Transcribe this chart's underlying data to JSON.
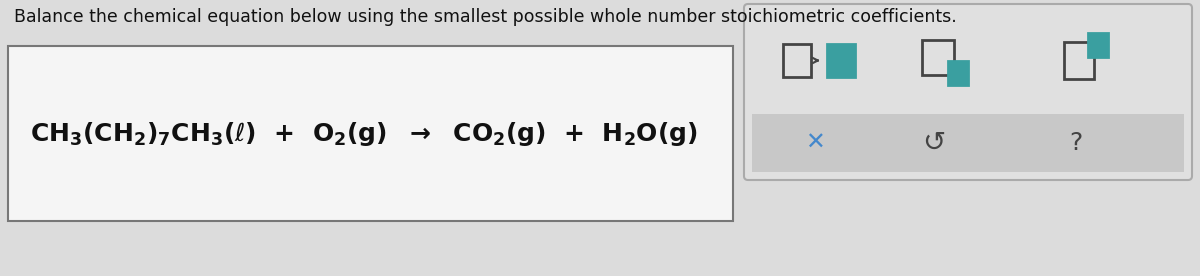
{
  "bg_color": "#dcdcdc",
  "title": "Balance the chemical equation below using the smallest possible whole number stoichiometric coefficients.",
  "title_fontsize": 12.5,
  "title_color": "#111111",
  "equation_box_facecolor": "#f5f5f5",
  "equation_box_border": "#777777",
  "equation_fontsize": 18,
  "equation_color": "#111111",
  "panel_box_color": "#e0e0e0",
  "panel_border": "#aaaaaa",
  "teal_color": "#3a9fa0",
  "dark_sq_color": "#444444",
  "bottom_strip_color": "#c8c8c8",
  "x_color": "#4488cc",
  "s_color": "#444444",
  "q_color": "#444444",
  "icon_lw": 2.0
}
